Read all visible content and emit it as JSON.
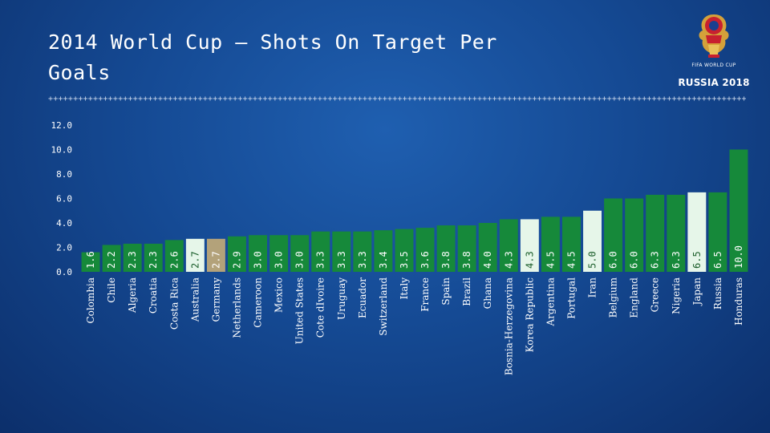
{
  "slide": {
    "title": "2014 World Cup – Shots On Target Per Goals",
    "divider": "+++++++++++++++++++++++++++++++++++++++++++++++++++++++++++++++++++++++++++++++++++++++++++++++++++++++++++++++++++++++++++++++++++++++++++++++++++++++++++++++++"
  },
  "logo": {
    "small_text": "FIFA WORLD CUP",
    "main_text": "RUSSIA 2018"
  },
  "colors": {
    "bar_default": "#16893a",
    "bar_highlight_light": "#e6f6e9",
    "bar_highlight_tan": "#b3a27a",
    "axis_text": "#ffffff"
  },
  "chart_data": {
    "type": "bar",
    "title": "",
    "xlabel": "",
    "ylabel": "",
    "ylim": [
      0,
      12
    ],
    "y_ticks": [
      "0.0",
      "2.0",
      "4.0",
      "6.0",
      "8.0",
      "10.0",
      "12.0"
    ],
    "grid": false,
    "categories": [
      "Colombia",
      "Chile",
      "Algeria",
      "Croatia",
      "Costa Rica",
      "Australia",
      "Germany",
      "Netherlands",
      "Cameroon",
      "Mexico",
      "United States",
      "Cote dIvoire",
      "Uruguay",
      "Ecuador",
      "Switzerland",
      "Italy",
      "France",
      "Spain",
      "Brazil",
      "Ghana",
      "Bosnia-Herzegovina",
      "Korea Republic",
      "Argentina",
      "Portugal",
      "Iran",
      "Belgium",
      "England",
      "Greece",
      "Nigeria",
      "Japan",
      "Russia",
      "Honduras"
    ],
    "values": [
      1.6,
      2.2,
      2.3,
      2.3,
      2.6,
      2.7,
      2.7,
      2.9,
      3.0,
      3.0,
      3.0,
      3.3,
      3.3,
      3.3,
      3.4,
      3.5,
      3.6,
      3.8,
      3.8,
      4.0,
      4.3,
      4.3,
      4.5,
      4.5,
      5.0,
      6.0,
      6.0,
      6.3,
      6.3,
      6.5,
      6.5,
      10.0
    ],
    "value_labels": [
      "1.6",
      "2.2",
      "2.3",
      "2.3",
      "2.6",
      "2.7",
      "2.7",
      "2.9",
      "3.0",
      "3.0",
      "3.0",
      "3.3",
      "3.3",
      "3.3",
      "3.4",
      "3.5",
      "3.6",
      "3.8",
      "3.8",
      "4.0",
      "4.3",
      "4.3",
      "4.5",
      "4.5",
      "5.0",
      "6.0",
      "6.0",
      "6.3",
      "6.3",
      "6.5",
      "6.5",
      "10.0"
    ],
    "bar_styles": [
      "default",
      "default",
      "default",
      "default",
      "default",
      "light",
      "tan",
      "default",
      "default",
      "default",
      "default",
      "default",
      "default",
      "default",
      "default",
      "default",
      "default",
      "default",
      "default",
      "default",
      "default",
      "light",
      "default",
      "default",
      "light",
      "default",
      "default",
      "default",
      "default",
      "light",
      "default",
      "default"
    ]
  }
}
